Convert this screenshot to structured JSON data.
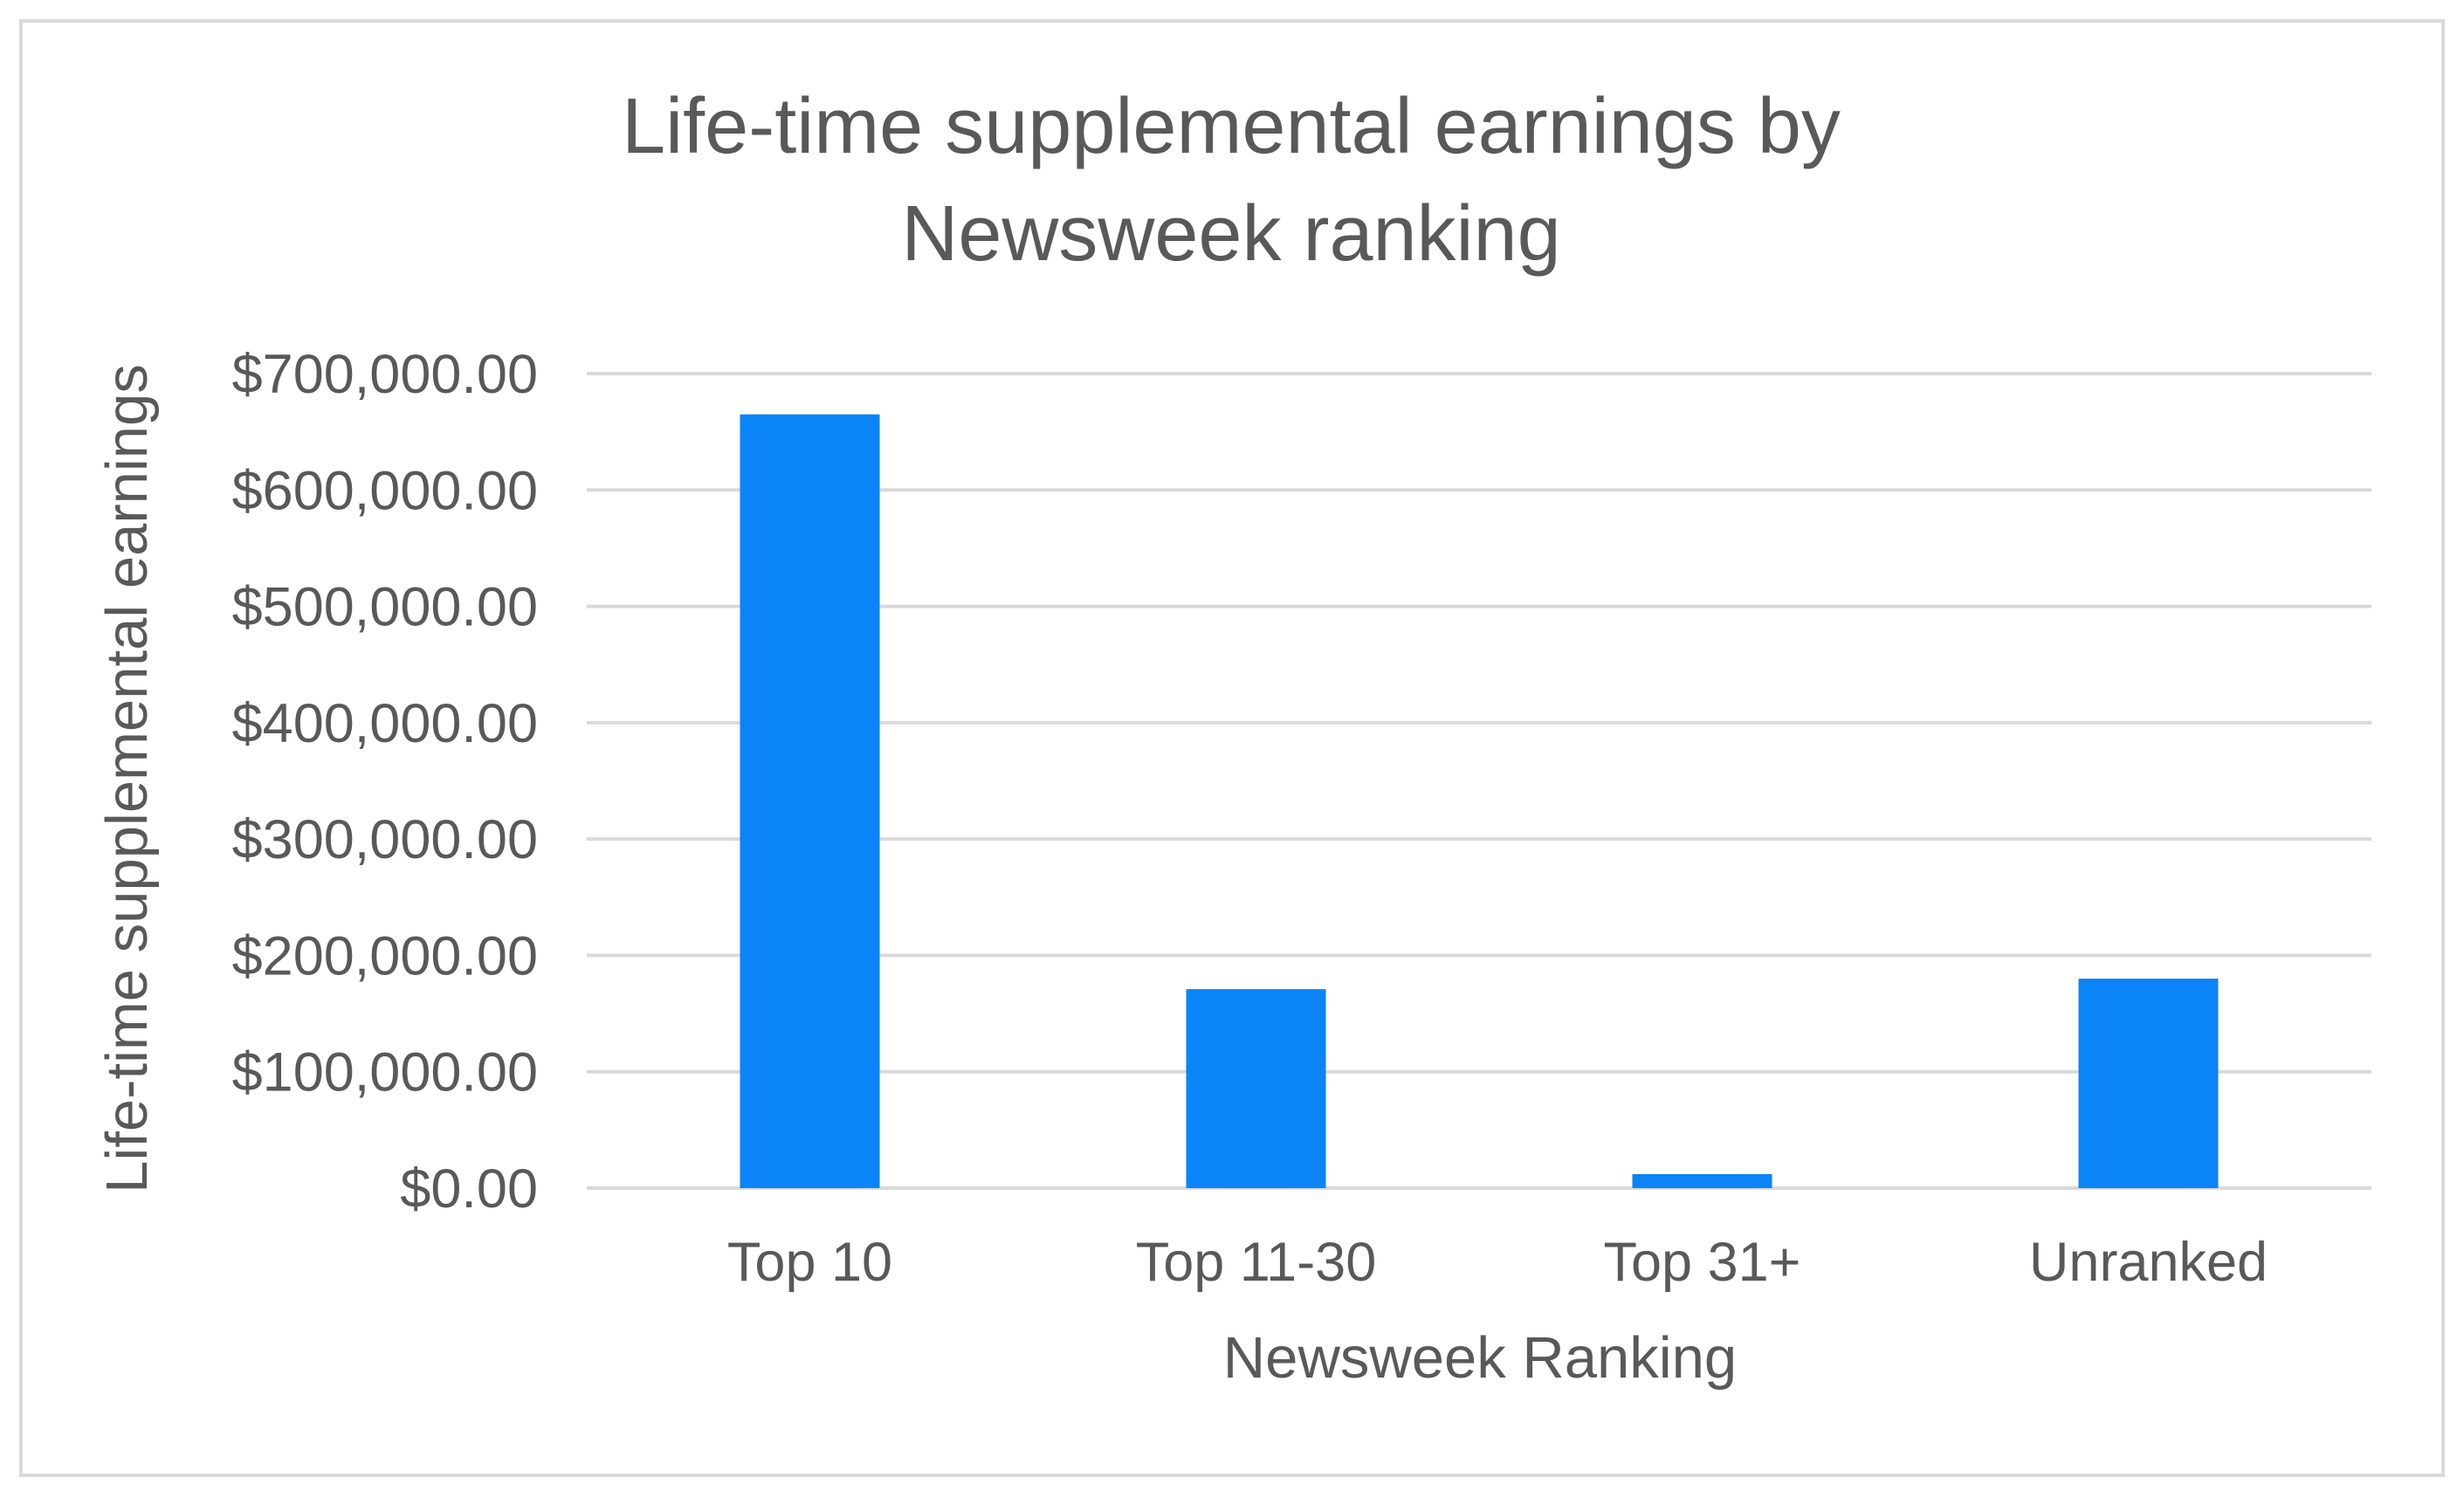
{
  "chart_data": {
    "type": "bar",
    "title_lines": [
      "Life-time supplemental earnings by",
      "Newsweek ranking"
    ],
    "xlabel": "Newsweek Ranking",
    "ylabel": "Life-time supplemental earnings",
    "categories": [
      "Top 10",
      "Top 11-30",
      "Top 31+",
      "Unranked"
    ],
    "values": [
      665000,
      171000,
      12000,
      180000
    ],
    "ylim": [
      0,
      700000
    ],
    "yticks": [
      0,
      100000,
      200000,
      300000,
      400000,
      500000,
      600000,
      700000
    ],
    "ytick_labels": [
      "$0.00",
      "$100,000.00",
      "$200,000.00",
      "$300,000.00",
      "$400,000.00",
      "$500,000.00",
      "$600,000.00",
      "$700,000.00"
    ],
    "grid": true,
    "legend": "none",
    "colors": {
      "bar": "#0a84f7",
      "grid": "#d9d9d9",
      "text": "#595959",
      "frame": "#d9d9d9"
    }
  }
}
